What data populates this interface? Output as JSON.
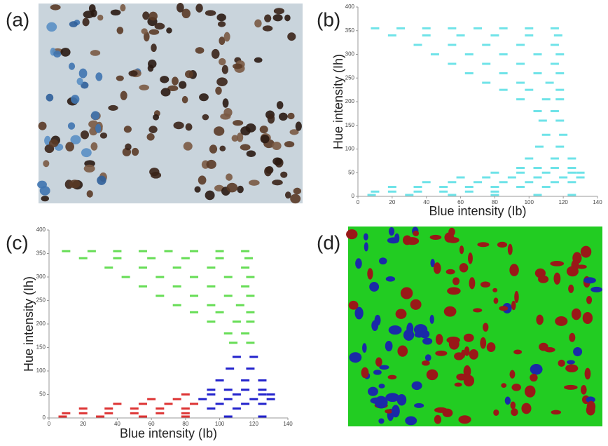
{
  "panel_labels": [
    "(a)",
    "(b)",
    "(c)",
    "(d)"
  ],
  "chart_data": [
    {
      "type": "scatter",
      "x_label": "Blue intensity (Ib)",
      "y_label": "Hue intensity (Ih)",
      "xlim": [
        0,
        140
      ],
      "xticks": [
        0,
        20,
        40,
        60,
        80,
        100,
        120,
        140
      ],
      "ylim": [
        0,
        400
      ],
      "yticks": [
        0,
        50,
        100,
        150,
        200,
        250,
        300,
        350,
        400
      ],
      "series": [
        {
          "color": "#6fe3e8",
          "x": [
            10,
            25,
            40,
            55,
            70,
            85,
            100,
            115,
            20,
            40,
            60,
            80,
            100,
            117,
            35,
            55,
            75,
            95,
            115,
            45,
            65,
            85,
            105,
            118,
            55,
            75,
            95,
            115,
            65,
            85,
            105,
            118,
            75,
            95,
            112,
            85,
            100,
            118,
            95,
            110,
            118,
            105,
            115,
            108,
            118,
            110,
            120,
            106,
            118,
            100,
            115,
            125,
            95,
            105,
            115,
            125,
            80,
            95,
            110,
            125,
            130,
            60,
            75,
            90,
            105,
            120,
            130,
            40,
            55,
            70,
            85,
            100,
            115,
            125,
            20,
            35,
            50,
            65,
            80,
            95,
            110,
            10,
            20,
            35,
            50,
            65,
            80,
            8,
            30,
            55,
            80,
            105,
            125
          ],
          "values": [
            355,
            355,
            355,
            355,
            355,
            355,
            355,
            355,
            340,
            340,
            340,
            340,
            340,
            340,
            320,
            320,
            320,
            320,
            320,
            300,
            300,
            300,
            300,
            300,
            280,
            280,
            280,
            280,
            260,
            260,
            260,
            260,
            240,
            240,
            240,
            225,
            225,
            225,
            205,
            205,
            205,
            180,
            180,
            160,
            160,
            130,
            130,
            105,
            105,
            80,
            80,
            80,
            60,
            60,
            60,
            60,
            50,
            50,
            50,
            50,
            50,
            40,
            40,
            40,
            40,
            40,
            40,
            30,
            30,
            30,
            30,
            30,
            30,
            30,
            20,
            20,
            20,
            20,
            20,
            20,
            20,
            10,
            10,
            10,
            10,
            10,
            10,
            3,
            3,
            3,
            3,
            3,
            3
          ]
        }
      ]
    },
    {
      "type": "scatter",
      "x_label": "Blue intensity (Ib)",
      "y_label": "Hue intensity (Ih)",
      "xlim": [
        0,
        140
      ],
      "xticks": [
        0,
        20,
        40,
        60,
        80,
        100,
        120,
        140
      ],
      "ylim": [
        0,
        400
      ],
      "yticks": [
        0,
        50,
        100,
        150,
        200,
        250,
        300,
        350,
        400
      ],
      "series": [
        {
          "color": "#66dd55",
          "x": [
            10,
            25,
            40,
            55,
            70,
            85,
            100,
            115,
            20,
            40,
            60,
            80,
            100,
            117,
            35,
            55,
            75,
            95,
            115,
            45,
            65,
            85,
            105,
            118,
            55,
            75,
            95,
            115,
            65,
            85,
            105,
            118,
            75,
            95,
            112,
            85,
            100,
            118,
            95,
            110,
            118,
            105,
            115,
            108,
            118
          ],
          "values": [
            355,
            355,
            355,
            355,
            355,
            355,
            355,
            355,
            340,
            340,
            340,
            340,
            340,
            340,
            320,
            320,
            320,
            320,
            320,
            300,
            300,
            300,
            300,
            300,
            280,
            280,
            280,
            280,
            260,
            260,
            260,
            260,
            240,
            240,
            240,
            225,
            225,
            225,
            205,
            205,
            205,
            180,
            180,
            160,
            160
          ]
        },
        {
          "color": "#2222cc",
          "x": [
            110,
            120,
            106,
            118,
            100,
            115,
            125,
            95,
            105,
            115,
            125,
            95,
            110,
            125,
            130,
            90,
            105,
            120,
            130,
            100,
            115,
            125,
            95,
            110,
            105,
            125
          ],
          "values": [
            130,
            130,
            105,
            105,
            80,
            80,
            80,
            60,
            60,
            60,
            60,
            50,
            50,
            50,
            50,
            40,
            40,
            40,
            40,
            30,
            30,
            30,
            20,
            20,
            3,
            3
          ]
        },
        {
          "color": "#dd3333",
          "x": [
            80,
            60,
            75,
            40,
            55,
            70,
            85,
            20,
            35,
            50,
            65,
            80,
            10,
            20,
            35,
            50,
            65,
            80,
            8,
            30,
            55,
            80
          ],
          "values": [
            50,
            40,
            40,
            30,
            30,
            30,
            30,
            20,
            20,
            20,
            20,
            20,
            10,
            10,
            10,
            10,
            10,
            10,
            3,
            3,
            3,
            3
          ]
        }
      ]
    }
  ]
}
